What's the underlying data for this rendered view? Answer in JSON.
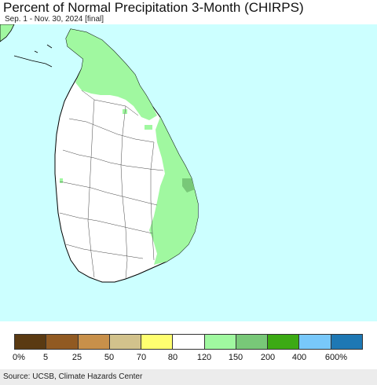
{
  "header": {
    "title": "Percent of Normal Precipitation 3-Month (CHIRPS)",
    "subtitle": "Sep. 1 - Nov. 30, 2024 [final]"
  },
  "map": {
    "sea_color": "#ccffff",
    "land_color": "#ffffff",
    "wet_color": "#a0f8a0",
    "very_wet_color": "#78c878",
    "border_color": "#000000"
  },
  "legend": {
    "colors": [
      "#5a3a12",
      "#915a22",
      "#c8904a",
      "#d2c28c",
      "#ffff70",
      "#ffffff",
      "#a0f8a0",
      "#78c878",
      "#3caa14",
      "#78c8fa",
      "#1e78b4"
    ],
    "labels": [
      "0%",
      "5",
      "25",
      "50",
      "70",
      "80",
      "120",
      "150",
      "200",
      "400",
      "600%"
    ]
  },
  "footer": {
    "source": "Source: UCSB, Climate Hazards Center"
  }
}
